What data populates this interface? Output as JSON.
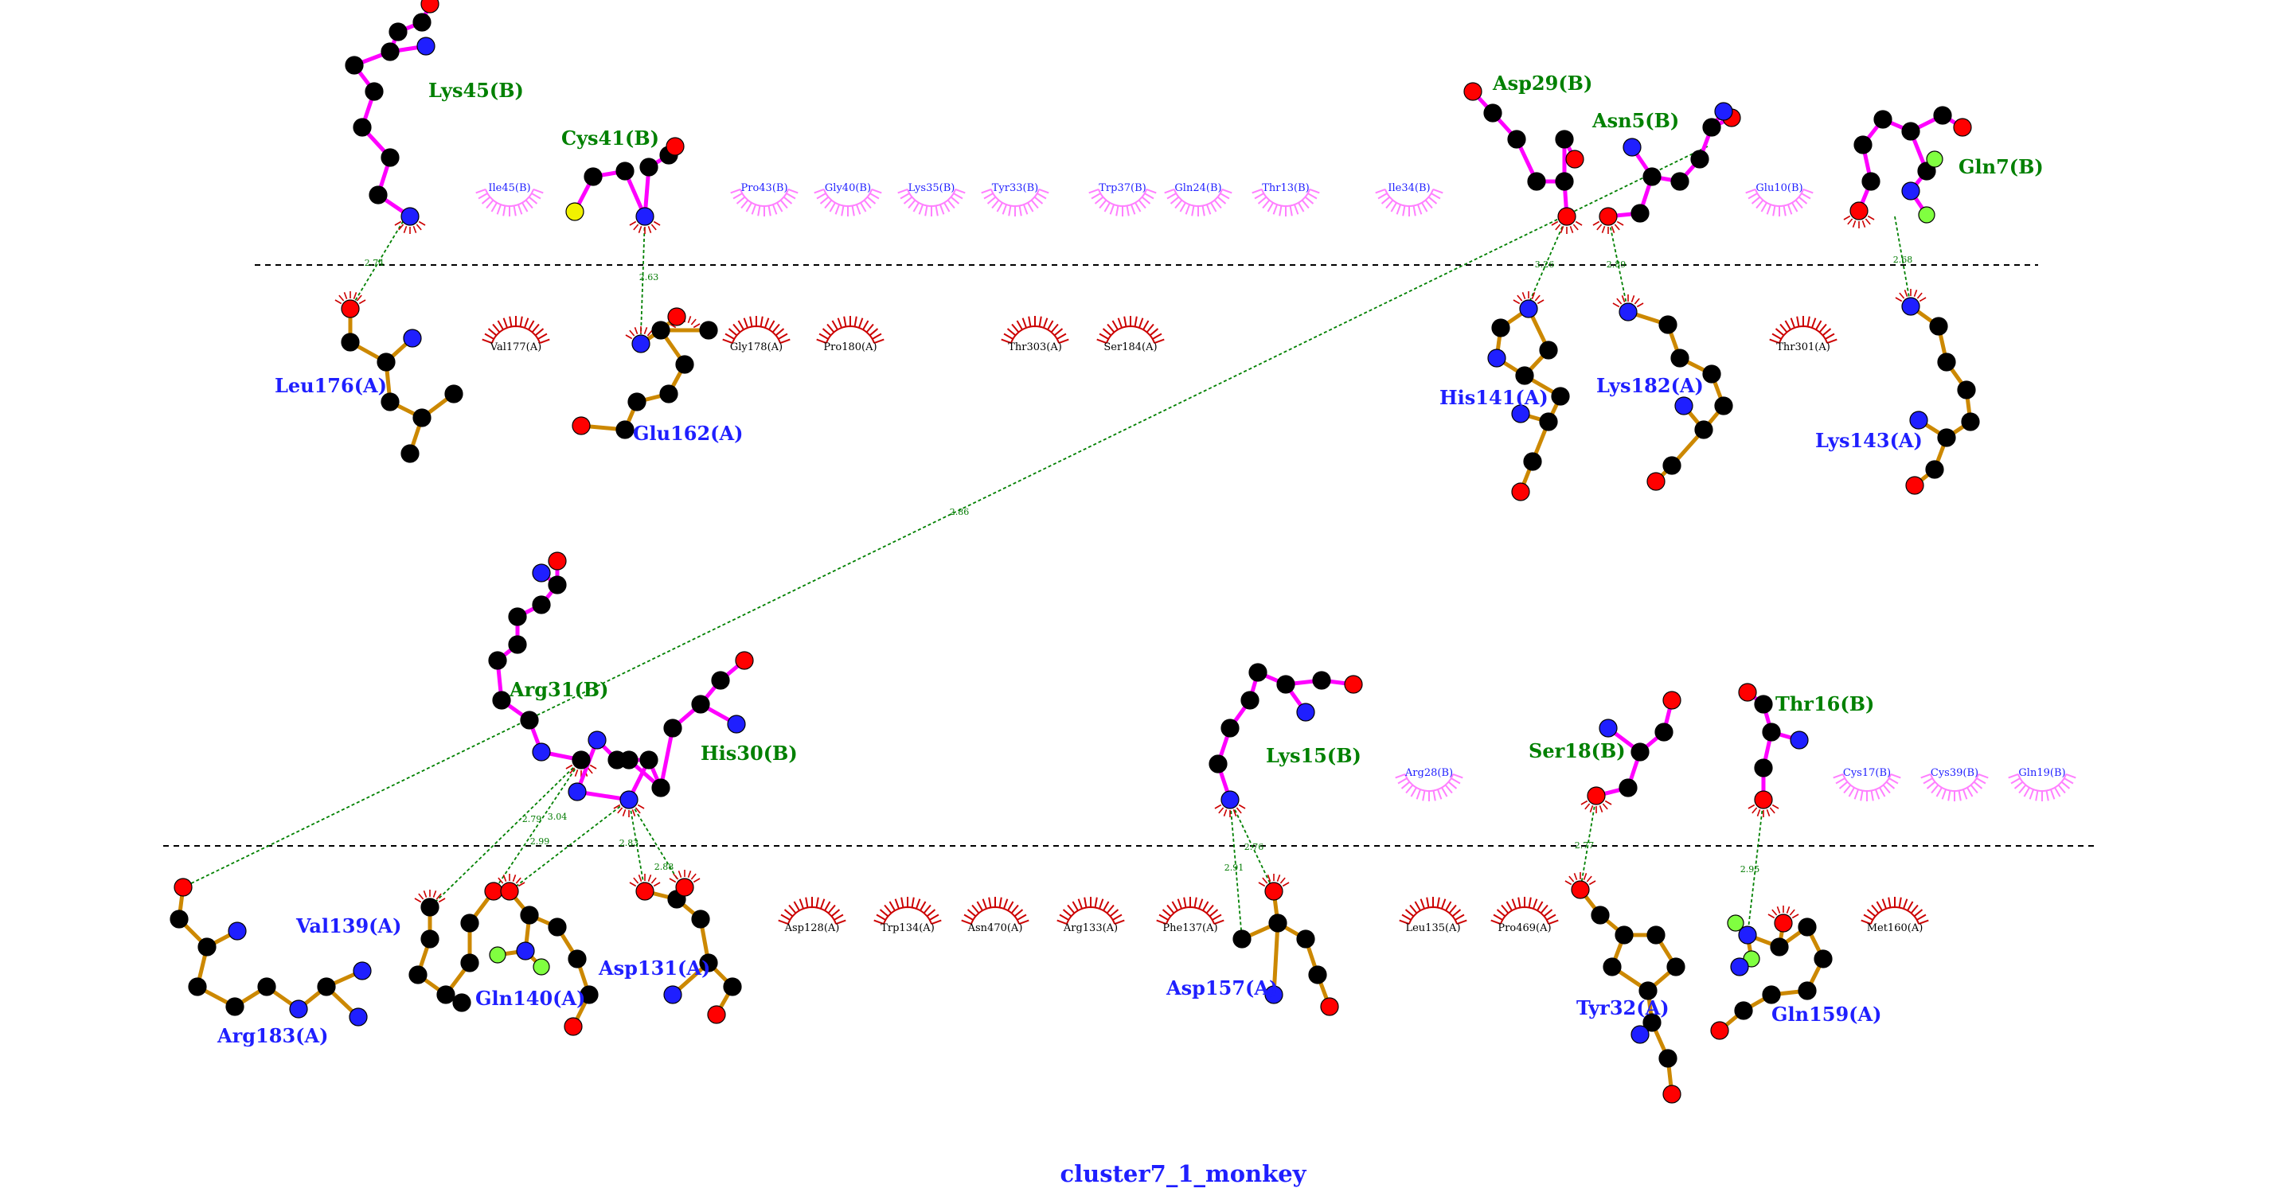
{
  "title": "cluster7_1_monkey",
  "colors": {
    "chain_b_bond": "#ff00ff",
    "chain_a_bond": "#cc8800",
    "hbond": "#008000",
    "carbon": "#000000",
    "nitrogen": "#1f1fff",
    "oxygen": "#ff0000",
    "sulfur": "#f2f200",
    "hydrogen_marker": "#80ff40",
    "chain_b_label": "#008000",
    "chain_a_label": "#1f1fff",
    "chain_b_arc": "#ff7fff",
    "chain_a_arc": "#cc0000"
  },
  "residues_b": [
    "Lys45(B)",
    "Cys41(B)",
    "Asp29(B)",
    "Asn5(B)",
    "Gln7(B)",
    "Arg31(B)",
    "His30(B)",
    "Lys15(B)",
    "Ser18(B)",
    "Thr16(B)"
  ],
  "residues_a": [
    "Leu176(A)",
    "Glu162(A)",
    "His141(A)",
    "Lys182(A)",
    "Lys143(A)",
    "Val139(A)",
    "Arg183(A)",
    "Gln140(A)",
    "Asp131(A)",
    "Asp157(A)",
    "Tyr32(A)",
    "Gln159(A)"
  ],
  "hydrophobic_b": [
    "Ile45(B)",
    "Pro43(B)",
    "Gly40(B)",
    "Lys35(B)",
    "Tyr33(B)",
    "Trp37(B)",
    "Gln24(B)",
    "Thr13(B)",
    "Ile34(B)",
    "Glu10(B)",
    "Arg28(B)",
    "Cys17(B)",
    "Cys39(B)",
    "Gln19(B)"
  ],
  "hydrophobic_a": [
    "Val177(A)",
    "Gly178(A)",
    "Pro180(A)",
    "Thr303(A)",
    "Ser184(A)",
    "Thr301(A)",
    "Asp128(A)",
    "Trp134(A)",
    "Asn470(A)",
    "Arg133(A)",
    "Phe137(A)",
    "Leu135(A)",
    "Pro469(A)",
    "Met160(A)"
  ],
  "hbond_distances": [
    "2.74",
    "2.63",
    "3.26",
    "2.89",
    "2.68",
    "2.86",
    "2.79",
    "3.04",
    "2.99",
    "2.83",
    "2.88",
    "2.91",
    "2.76",
    "2.77",
    "2.95"
  ]
}
